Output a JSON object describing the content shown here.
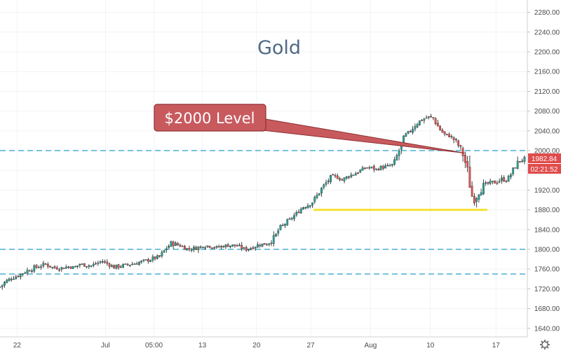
{
  "chart_data": {
    "type": "candlestick",
    "title": "Gold",
    "ylim": [
      1620,
      2300
    ],
    "y_ticks": [
      "2280.00",
      "2240.00",
      "2200.00",
      "2160.00",
      "2120.00",
      "2080.00",
      "2040.00",
      "2000.00",
      "1960.00",
      "1920.00",
      "1880.00",
      "1840.00",
      "1800.00",
      "1760.00",
      "1720.00",
      "1680.00",
      "1640.00"
    ],
    "y_tick_values": [
      2280,
      2240,
      2200,
      2160,
      2120,
      2080,
      2040,
      2000,
      1960,
      1920,
      1880,
      1840,
      1800,
      1760,
      1720,
      1680,
      1640
    ],
    "x_ticks": [
      "22",
      "Jul",
      "05:00",
      "13",
      "20",
      "27",
      "Aug",
      "10",
      "17"
    ],
    "x_tick_positions": [
      3,
      18.5,
      27,
      35.5,
      45,
      54.5,
      65,
      75.5,
      87
    ],
    "x_range": [
      0,
      92.5
    ],
    "close_path": [
      [
        0,
        1724
      ],
      [
        1,
        1735
      ],
      [
        2,
        1742
      ],
      [
        3,
        1746
      ],
      [
        4,
        1752
      ],
      [
        5,
        1758
      ],
      [
        6,
        1762
      ],
      [
        7,
        1766
      ],
      [
        8,
        1770
      ],
      [
        9,
        1764
      ],
      [
        10,
        1762
      ],
      [
        11,
        1762
      ],
      [
        12,
        1765
      ],
      [
        13,
        1763
      ],
      [
        14,
        1770
      ],
      [
        15,
        1768
      ],
      [
        16,
        1767
      ],
      [
        17,
        1772
      ],
      [
        18,
        1776
      ],
      [
        19,
        1770
      ],
      [
        20,
        1764
      ],
      [
        21,
        1766
      ],
      [
        22,
        1768
      ],
      [
        23,
        1770
      ],
      [
        24,
        1772
      ],
      [
        25,
        1776
      ],
      [
        26,
        1778
      ],
      [
        27,
        1782
      ],
      [
        28,
        1785
      ],
      [
        29,
        1800
      ],
      [
        30,
        1812
      ],
      [
        31,
        1810
      ],
      [
        32,
        1806
      ],
      [
        33,
        1800
      ],
      [
        34,
        1802
      ],
      [
        35,
        1804
      ],
      [
        36,
        1808
      ],
      [
        37,
        1806
      ],
      [
        38,
        1804
      ],
      [
        39,
        1806
      ],
      [
        40,
        1808
      ],
      [
        41,
        1808
      ],
      [
        42,
        1806
      ],
      [
        43,
        1800
      ],
      [
        44,
        1803
      ],
      [
        45,
        1808
      ],
      [
        46,
        1810
      ],
      [
        47,
        1812
      ],
      [
        48,
        1822
      ],
      [
        49,
        1842
      ],
      [
        50,
        1852
      ],
      [
        51,
        1862
      ],
      [
        52,
        1872
      ],
      [
        53,
        1885
      ],
      [
        54,
        1890
      ],
      [
        55,
        1898
      ],
      [
        56,
        1916
      ],
      [
        57,
        1932
      ],
      [
        58,
        1945
      ],
      [
        59,
        1948
      ],
      [
        60,
        1940
      ],
      [
        61,
        1948
      ],
      [
        62,
        1952
      ],
      [
        63,
        1958
      ],
      [
        64,
        1965
      ],
      [
        65,
        1966
      ],
      [
        66,
        1962
      ],
      [
        67,
        1966
      ],
      [
        68,
        1968
      ],
      [
        69,
        1972
      ],
      [
        70,
        2000
      ],
      [
        71,
        2030
      ],
      [
        72,
        2040
      ],
      [
        73,
        2055
      ],
      [
        74,
        2062
      ],
      [
        75,
        2068
      ],
      [
        76,
        2066
      ],
      [
        77,
        2045
      ],
      [
        78,
        2032
      ],
      [
        79,
        2030
      ],
      [
        80,
        2018
      ],
      [
        81,
        2000
      ],
      [
        82,
        1960
      ],
      [
        83,
        1895
      ],
      [
        84,
        1918
      ],
      [
        85,
        1930
      ],
      [
        86,
        1935
      ],
      [
        87,
        1936
      ],
      [
        88,
        1942
      ],
      [
        89,
        1940
      ],
      [
        90,
        1960
      ],
      [
        91,
        1978
      ],
      [
        92,
        1982.84
      ]
    ],
    "horizontal_levels": [
      {
        "value": 2000,
        "style": "dashed",
        "color": "#4ab1d1"
      },
      {
        "value": 1800,
        "style": "dashed",
        "color": "#4ab1d1"
      },
      {
        "value": 1750,
        "style": "dashed",
        "color": "#4ab1d1"
      }
    ],
    "support_segment": {
      "value": 1880,
      "x_start": 55,
      "x_end": 85.5,
      "color": "#f7e130"
    },
    "callout": {
      "text": "$2000 Level",
      "arrow_target": [
        81.5,
        1995
      ]
    },
    "last_price": "1982.84",
    "countdown": "02:21:52",
    "colors": {
      "up": "#26a69a",
      "down": "#ef5350",
      "candle": "#2b2b2b",
      "level": "#4ab1d1",
      "callout_fill": "#c85a5e",
      "callout_border": "#8e2f33",
      "price_tag": "#e04b4b"
    }
  },
  "icons": {
    "settings": "gear-icon"
  }
}
